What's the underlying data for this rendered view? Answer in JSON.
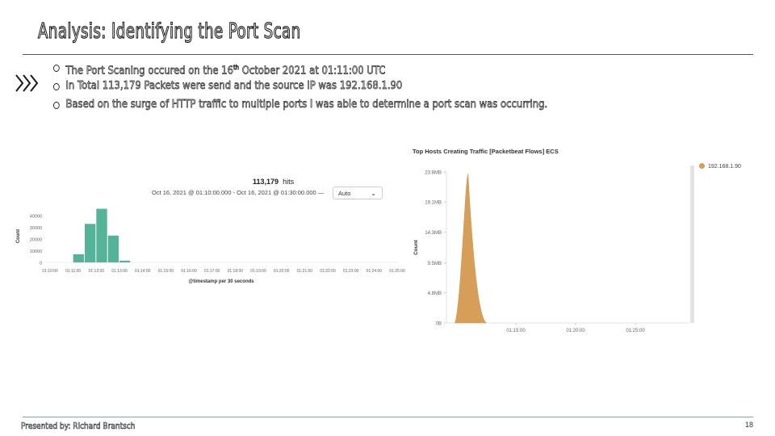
{
  "slide": {
    "title": "Analysis: Identifying the Port Scan",
    "bullets": [
      {
        "pre": "The Port Scaning occured on the 16",
        "sup": "th",
        "post": " October 2021 at 01:11:00 UTC"
      },
      {
        "pre": "In Total 113,179 Packets were send and the source IP was 192.168.1.90",
        "sup": "",
        "post": ""
      },
      {
        "pre": "Based on the surge of HTTP traffic to multiple ports I was able to determine a port scan was occurring.",
        "sup": "",
        "post": ""
      }
    ],
    "footer": "Presented by: Richard Brantsch",
    "page_number": "18"
  },
  "hits_panel": {
    "hits_value": "113,179",
    "hits_label": "hits",
    "time_range": "Oct 16, 2021 @ 01:10:00.000 - Oct 16, 2021 @ 01:30:00.000 —",
    "interval": "Auto"
  },
  "chart_data": [
    {
      "type": "bar",
      "title": "",
      "xlabel": "@timestamp per 30 seconds",
      "ylabel": "Count",
      "ylim": [
        0,
        45000
      ],
      "yticks": [
        "0",
        "10000",
        "20000",
        "30000",
        "40000"
      ],
      "xticks": [
        "01:10:00",
        "01:11:00",
        "01:12:00",
        "01:13:00",
        "01:14:00",
        "01:15:00",
        "01:16:00",
        "01:17:00",
        "01:18:00",
        "01:19:00",
        "01:20:00",
        "01:21:00",
        "01:22:00",
        "01:23:00",
        "01:24:00",
        "01:25:00"
      ],
      "x": [
        "01:11:00",
        "01:11:30",
        "01:12:00",
        "01:12:30",
        "01:13:00"
      ],
      "values": [
        7000,
        33000,
        46000,
        23000,
        1500
      ],
      "color": "#54b399"
    },
    {
      "type": "area",
      "title": "Top Hosts Creating Traffic [Packetbeat Flows] ECS",
      "xlabel": "",
      "ylabel": "Count",
      "yticks": [
        "0B",
        "4.8MB",
        "9.5MB",
        "14.3MB",
        "19.1MB",
        "23.8MB"
      ],
      "xticks": [
        "01:15:00",
        "01:20:00",
        "01:25:00"
      ],
      "ylim_mb": [
        0,
        23.8
      ],
      "series": [
        {
          "name": "192.168.1.90",
          "color": "#d69e58",
          "x": [
            "01:10:00",
            "01:10:30",
            "01:11:00",
            "01:11:30",
            "01:12:00",
            "01:12:30"
          ],
          "values_mb": [
            0,
            0,
            23.5,
            0,
            0,
            0
          ]
        }
      ],
      "legend_position": "right"
    }
  ]
}
